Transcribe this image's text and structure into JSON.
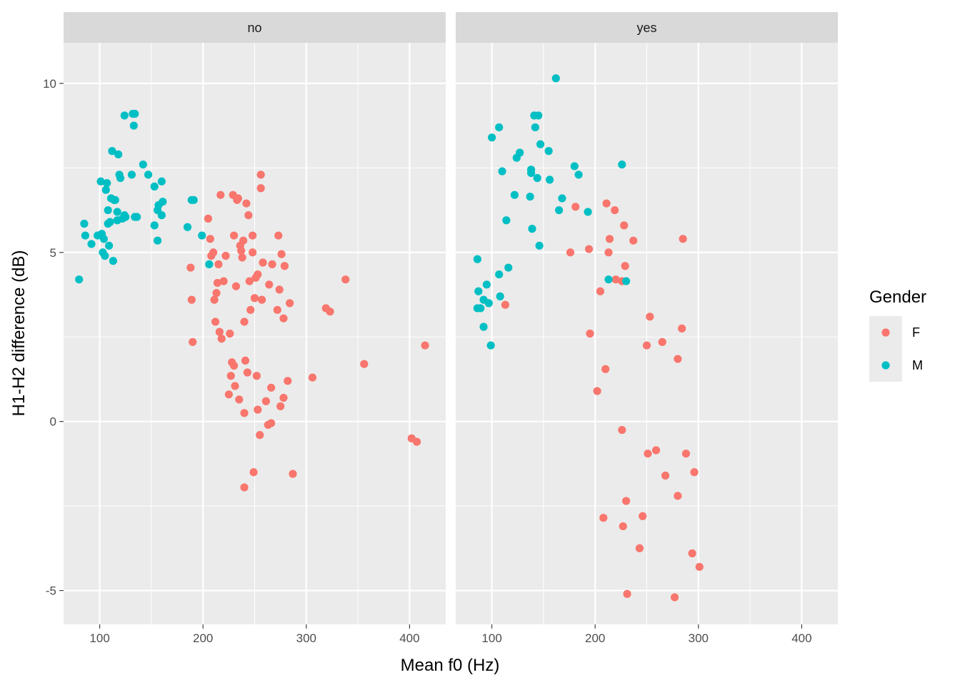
{
  "chart_data": {
    "type": "scatter",
    "xlabel": "Mean f0 (Hz)",
    "ylabel": "H1-H2 difference (dB)",
    "xlim": [
      65,
      435
    ],
    "ylim": [
      -6,
      11.2
    ],
    "x_ticks": [
      100,
      200,
      300,
      400
    ],
    "y_ticks": [
      -5,
      0,
      5,
      10
    ],
    "x_tick_labels": [
      "100",
      "200",
      "300",
      "400"
    ],
    "y_tick_labels": [
      "-5",
      "0",
      "5",
      "10"
    ],
    "grid": true,
    "legend": {
      "title": "Gender",
      "position": "right",
      "entries": [
        {
          "label": "F",
          "color": "#F8766D"
        },
        {
          "label": "M",
          "color": "#00BFC4"
        }
      ]
    },
    "facets": [
      {
        "label": "no",
        "series": [
          {
            "group": "F",
            "color": "#F8766D",
            "points": [
              [
                188,
                4.55
              ],
              [
                189,
                3.6
              ],
              [
                190,
                2.35
              ],
              [
                205,
                6.0
              ],
              [
                207,
                5.4
              ],
              [
                208,
                4.9
              ],
              [
                210,
                5.0
              ],
              [
                211,
                3.6
              ],
              [
                212,
                2.95
              ],
              [
                213,
                3.8
              ],
              [
                214,
                4.1
              ],
              [
                215,
                4.65
              ],
              [
                216,
                2.65
              ],
              [
                217,
                6.7
              ],
              [
                218,
                2.45
              ],
              [
                220,
                4.15
              ],
              [
                222,
                4.9
              ],
              [
                225,
                0.8
              ],
              [
                226,
                2.6
              ],
              [
                227,
                1.35
              ],
              [
                228,
                1.75
              ],
              [
                229,
                6.7
              ],
              [
                230,
                1.65
              ],
              [
                230,
                5.5
              ],
              [
                231,
                1.05
              ],
              [
                232,
                4.0
              ],
              [
                233,
                6.55
              ],
              [
                234,
                6.6
              ],
              [
                235,
                0.65
              ],
              [
                236,
                5.2
              ],
              [
                237,
                5.05
              ],
              [
                238,
                4.85
              ],
              [
                239,
                5.35
              ],
              [
                240,
                2.95
              ],
              [
                240,
                0.25
              ],
              [
                240,
                -1.95
              ],
              [
                241,
                1.8
              ],
              [
                242,
                6.45
              ],
              [
                243,
                1.45
              ],
              [
                244,
                6.1
              ],
              [
                245,
                4.15
              ],
              [
                246,
                3.3
              ],
              [
                248,
                5.5
              ],
              [
                248,
                5.0
              ],
              [
                249,
                -1.5
              ],
              [
                250,
                3.65
              ],
              [
                251,
                4.25
              ],
              [
                252,
                1.35
              ],
              [
                253,
                0.35
              ],
              [
                253,
                4.35
              ],
              [
                255,
                -0.4
              ],
              [
                256,
                7.3
              ],
              [
                256,
                6.9
              ],
              [
                257,
                3.6
              ],
              [
                258,
                4.7
              ],
              [
                261,
                0.6
              ],
              [
                263,
                -0.1
              ],
              [
                264,
                4.05
              ],
              [
                266,
                1.0
              ],
              [
                266,
                -0.05
              ],
              [
                267,
                4.65
              ],
              [
                272,
                3.3
              ],
              [
                273,
                5.5
              ],
              [
                274,
                3.9
              ],
              [
                275,
                0.45
              ],
              [
                276,
                4.95
              ],
              [
                278,
                3.05
              ],
              [
                278,
                0.7
              ],
              [
                279,
                4.6
              ],
              [
                282,
                1.2
              ],
              [
                284,
                3.5
              ],
              [
                287,
                -1.55
              ],
              [
                306,
                1.3
              ],
              [
                319,
                3.35
              ],
              [
                323,
                3.25
              ],
              [
                338,
                4.2
              ],
              [
                356,
                1.7
              ],
              [
                402,
                -0.5
              ],
              [
                407,
                -0.6
              ],
              [
                415,
                2.25
              ]
            ]
          },
          {
            "group": "M",
            "color": "#00BFC4",
            "points": [
              [
                80,
                4.2
              ],
              [
                85,
                5.85
              ],
              [
                86,
                5.5
              ],
              [
                92,
                5.25
              ],
              [
                98,
                5.5
              ],
              [
                101,
                7.1
              ],
              [
                102,
                5.55
              ],
              [
                103,
                5.0
              ],
              [
                104,
                5.4
              ],
              [
                105,
                4.9
              ],
              [
                106,
                6.85
              ],
              [
                107,
                7.05
              ],
              [
                108,
                6.25
              ],
              [
                108,
                5.85
              ],
              [
                109,
                5.2
              ],
              [
                110,
                5.9
              ],
              [
                111,
                6.6
              ],
              [
                112,
                8.0
              ],
              [
                113,
                4.75
              ],
              [
                114,
                6.55
              ],
              [
                115,
                6.55
              ],
              [
                117,
                6.2
              ],
              [
                117,
                5.95
              ],
              [
                118,
                7.9
              ],
              [
                119,
                7.3
              ],
              [
                120,
                7.2
              ],
              [
                122,
                6.0
              ],
              [
                124,
                9.05
              ],
              [
                124,
                6.1
              ],
              [
                125,
                6.05
              ],
              [
                131,
                7.3
              ],
              [
                132,
                9.1
              ],
              [
                133,
                8.75
              ],
              [
                134,
                6.05
              ],
              [
                134,
                9.1
              ],
              [
                136,
                6.05
              ],
              [
                142,
                7.6
              ],
              [
                147,
                7.3
              ],
              [
                153,
                6.95
              ],
              [
                153,
                5.8
              ],
              [
                156,
                6.25
              ],
              [
                156,
                5.35
              ],
              [
                157,
                6.4
              ],
              [
                160,
                7.1
              ],
              [
                160,
                6.1
              ],
              [
                161,
                6.5
              ],
              [
                185,
                5.75
              ],
              [
                189,
                6.55
              ],
              [
                191,
                6.55
              ],
              [
                199,
                5.5
              ],
              [
                206,
                4.65
              ]
            ]
          }
        ]
      },
      {
        "label": "yes",
        "series": [
          {
            "group": "F",
            "color": "#F8766D",
            "points": [
              [
                113,
                3.45
              ],
              [
                176,
                5.0
              ],
              [
                181,
                6.35
              ],
              [
                194,
                5.1
              ],
              [
                195,
                2.6
              ],
              [
                202,
                0.9
              ],
              [
                205,
                3.85
              ],
              [
                208,
                -2.85
              ],
              [
                210,
                1.55
              ],
              [
                211,
                6.45
              ],
              [
                213,
                5.0
              ],
              [
                214,
                5.4
              ],
              [
                219,
                6.25
              ],
              [
                220,
                4.2
              ],
              [
                226,
                4.15
              ],
              [
                226,
                -0.25
              ],
              [
                227,
                -3.1
              ],
              [
                228,
                5.8
              ],
              [
                229,
                4.6
              ],
              [
                230,
                -2.35
              ],
              [
                231,
                -5.1
              ],
              [
                237,
                5.35
              ],
              [
                243,
                -3.75
              ],
              [
                246,
                -2.8
              ],
              [
                250,
                2.25
              ],
              [
                251,
                -0.95
              ],
              [
                253,
                3.1
              ],
              [
                259,
                -0.85
              ],
              [
                265,
                2.35
              ],
              [
                268,
                -1.6
              ],
              [
                277,
                -5.2
              ],
              [
                280,
                1.85
              ],
              [
                280,
                -2.2
              ],
              [
                284,
                2.75
              ],
              [
                285,
                5.4
              ],
              [
                288,
                -0.95
              ],
              [
                294,
                -3.9
              ],
              [
                296,
                -1.5
              ],
              [
                301,
                -4.3
              ]
            ]
          },
          {
            "group": "M",
            "color": "#00BFC4",
            "points": [
              [
                86,
                4.8
              ],
              [
                86,
                3.35
              ],
              [
                87,
                3.85
              ],
              [
                89,
                3.35
              ],
              [
                92,
                3.6
              ],
              [
                92,
                2.8
              ],
              [
                95,
                4.05
              ],
              [
                97,
                3.5
              ],
              [
                99,
                2.25
              ],
              [
                100,
                8.4
              ],
              [
                107,
                4.35
              ],
              [
                107,
                8.7
              ],
              [
                108,
                3.7
              ],
              [
                110,
                7.4
              ],
              [
                114,
                5.95
              ],
              [
                116,
                4.55
              ],
              [
                122,
                6.7
              ],
              [
                124,
                7.8
              ],
              [
                127,
                7.95
              ],
              [
                137,
                6.65
              ],
              [
                138,
                7.45
              ],
              [
                138,
                7.35
              ],
              [
                139,
                5.7
              ],
              [
                141,
                9.05
              ],
              [
                142,
                8.7
              ],
              [
                144,
                7.2
              ],
              [
                145,
                9.05
              ],
              [
                146,
                5.2
              ],
              [
                147,
                8.2
              ],
              [
                155,
                8.0
              ],
              [
                156,
                7.15
              ],
              [
                162,
                10.15
              ],
              [
                165,
                6.25
              ],
              [
                168,
                6.6
              ],
              [
                180,
                7.55
              ],
              [
                184,
                7.3
              ],
              [
                193,
                6.2
              ],
              [
                213,
                4.2
              ],
              [
                226,
                7.6
              ],
              [
                230,
                4.15
              ]
            ]
          }
        ]
      }
    ]
  }
}
